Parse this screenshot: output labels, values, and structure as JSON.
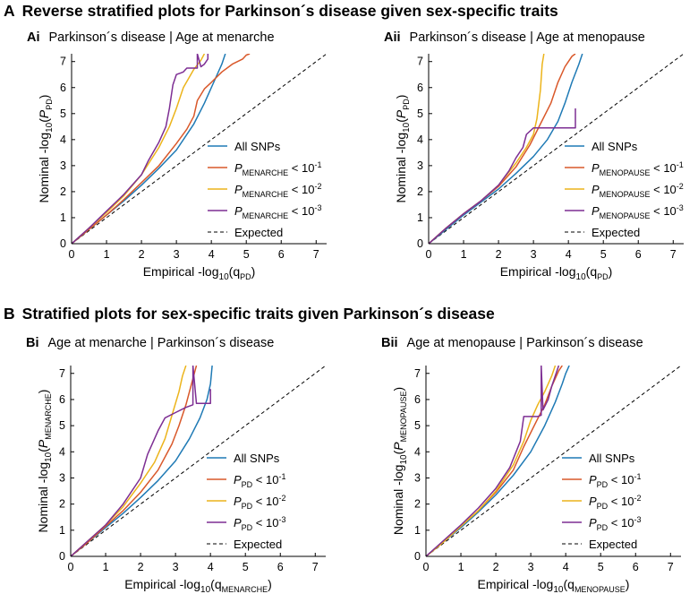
{
  "sections": [
    {
      "letter": "A",
      "title": "Reverse stratified plots for Parkinson´s disease given sex-specific traits"
    },
    {
      "letter": "B",
      "title": "Stratified plots for sex-specific traits given Parkinson´s disease"
    }
  ],
  "legend_expected": "Expected",
  "colors": {
    "all_snps": "#1f7ab5",
    "p1": "#d9582a",
    "p2": "#ecb41b",
    "p3": "#7d2e93",
    "expected": "#000000",
    "axis": "#000000"
  },
  "chart_data": [
    {
      "type": "line",
      "id": "Ai",
      "panel_label": "Ai",
      "title": "Parkinson´s disease | Age at menarche",
      "xlabel": "Empirical -log10(qPD)",
      "ylabel": "Nominal -log10(PPD)",
      "xlabel_parts": {
        "prefix": "Empirical -log",
        "base": "10",
        "paren_open": "(",
        "var": "q",
        "sub": "PD",
        "paren_close": ")"
      },
      "ylabel_parts": {
        "prefix": "Nominal -log",
        "base": "10",
        "paren_open": "(",
        "var": "P",
        "sub": "PD",
        "paren_close": ")"
      },
      "xlim": [
        0,
        7.3
      ],
      "ylim": [
        0,
        7.3
      ],
      "xticks": [
        "0",
        "1",
        "2",
        "3",
        "4",
        "5",
        "6",
        "7"
      ],
      "yticks": [
        "0",
        "1",
        "2",
        "3",
        "4",
        "5",
        "6",
        "7"
      ],
      "legend": [
        {
          "var": "",
          "sub": "",
          "text": "All SNPs",
          "sup": ""
        },
        {
          "var": "P",
          "sub": "MENARCHE",
          "text": " < 10",
          "sup": "-1"
        },
        {
          "var": "P",
          "sub": "MENARCHE",
          "text": " < 10",
          "sup": "-2"
        },
        {
          "var": "P",
          "sub": "MENARCHE",
          "text": " < 10",
          "sup": "-3"
        }
      ],
      "series": [
        {
          "name": "All SNPs",
          "color": "#1f7ab5",
          "x": [
            0,
            0.5,
            1,
            1.5,
            2,
            2.5,
            3,
            3.5,
            3.8,
            4.1,
            4.3,
            4.4
          ],
          "y": [
            0,
            0.55,
            1.1,
            1.65,
            2.25,
            2.9,
            3.6,
            4.6,
            5.4,
            6.3,
            6.9,
            7.3
          ]
        },
        {
          "name": "P_MENARCHE < 10^-1",
          "color": "#d9582a",
          "x": [
            0,
            0.5,
            1,
            1.5,
            2,
            2.5,
            3,
            3.3,
            3.5,
            3.6,
            3.8,
            4.0,
            4.3,
            4.6,
            4.9,
            5.0,
            5.1
          ],
          "y": [
            0,
            0.55,
            1.1,
            1.7,
            2.35,
            3.0,
            3.85,
            4.4,
            4.9,
            5.5,
            5.95,
            6.2,
            6.6,
            6.9,
            7.1,
            7.25,
            7.3
          ]
        },
        {
          "name": "P_MENARCHE < 10^-2",
          "color": "#ecb41b",
          "x": [
            0,
            0.5,
            1,
            1.5,
            2,
            2.5,
            2.8,
            3.0,
            3.2,
            3.5,
            3.7,
            3.8
          ],
          "y": [
            0,
            0.6,
            1.2,
            1.85,
            2.65,
            3.7,
            4.5,
            5.2,
            6.0,
            6.7,
            7.05,
            7.3
          ]
        },
        {
          "name": "P_MENARCHE < 10^-3",
          "color": "#7d2e93",
          "x": [
            0,
            0.5,
            1,
            1.5,
            2,
            2.2,
            2.5,
            2.7,
            2.8,
            2.9,
            3.0,
            3.1,
            3.2,
            3.3,
            3.4,
            3.5,
            3.6,
            3.6,
            3.7,
            3.8,
            3.9,
            3.9
          ],
          "y": [
            0,
            0.6,
            1.25,
            1.9,
            2.65,
            3.2,
            3.9,
            4.5,
            5.2,
            6.1,
            6.5,
            6.55,
            6.6,
            6.75,
            6.75,
            6.75,
            6.75,
            7.3,
            6.8,
            6.9,
            7.1,
            7.3
          ]
        }
      ]
    },
    {
      "type": "line",
      "id": "Aii",
      "panel_label": "Aii",
      "title": "Parkinson´s disease | Age at menopause",
      "xlabel": "Empirical -log10(qPD)",
      "ylabel": "Nominal -log10(PPD)",
      "xlabel_parts": {
        "prefix": "Empirical -log",
        "base": "10",
        "paren_open": "(",
        "var": "q",
        "sub": "PD",
        "paren_close": ")"
      },
      "ylabel_parts": {
        "prefix": "Nominal -log",
        "base": "10",
        "paren_open": "(",
        "var": "P",
        "sub": "PD",
        "paren_close": ")"
      },
      "xlim": [
        0,
        7.3
      ],
      "ylim": [
        0,
        7.3
      ],
      "xticks": [
        "0",
        "1",
        "2",
        "3",
        "4",
        "5",
        "6",
        "7"
      ],
      "yticks": [
        "0",
        "1",
        "2",
        "3",
        "4",
        "5",
        "6",
        "7"
      ],
      "legend": [
        {
          "var": "",
          "sub": "",
          "text": "All SNPs",
          "sup": ""
        },
        {
          "var": "P",
          "sub": "MENOPAUSE",
          "text": " < 10",
          "sup": "-1"
        },
        {
          "var": "P",
          "sub": "MENOPAUSE",
          "text": " < 10",
          "sup": "-2"
        },
        {
          "var": "P",
          "sub": "MENOPAUSE",
          "text": " < 10",
          "sup": "-3"
        }
      ],
      "series": [
        {
          "name": "All SNPs",
          "color": "#1f7ab5",
          "x": [
            0,
            0.5,
            1,
            1.5,
            2,
            2.5,
            3,
            3.4,
            3.7,
            3.9,
            4.1,
            4.3,
            4.4
          ],
          "y": [
            0,
            0.55,
            1.1,
            1.6,
            2.1,
            2.7,
            3.35,
            4.0,
            4.7,
            5.4,
            6.2,
            6.9,
            7.3
          ]
        },
        {
          "name": "P_MENOPAUSE < 10^-1",
          "color": "#d9582a",
          "x": [
            0,
            0.5,
            1,
            1.5,
            2,
            2.5,
            2.9,
            3.2,
            3.5,
            3.7,
            3.9,
            4.1,
            4.2
          ],
          "y": [
            0,
            0.6,
            1.15,
            1.65,
            2.2,
            2.95,
            3.8,
            4.6,
            5.4,
            6.2,
            6.8,
            7.2,
            7.3
          ]
        },
        {
          "name": "P_MENOPAUSE < 10^-2",
          "color": "#ecb41b",
          "x": [
            0,
            0.5,
            1,
            1.5,
            2,
            2.5,
            2.8,
            3.0,
            3.1,
            3.2,
            3.25,
            3.3
          ],
          "y": [
            0,
            0.6,
            1.15,
            1.65,
            2.25,
            3.1,
            3.7,
            4.2,
            4.8,
            5.9,
            6.9,
            7.3
          ]
        },
        {
          "name": "P_MENOPAUSE < 10^-3",
          "color": "#7d2e93",
          "x": [
            0,
            0.5,
            1,
            1.5,
            2,
            2.3,
            2.5,
            2.7,
            2.8,
            3.0,
            3.5,
            4.0,
            4.2,
            4.2
          ],
          "y": [
            0,
            0.6,
            1.15,
            1.65,
            2.25,
            2.8,
            3.3,
            3.7,
            4.2,
            4.45,
            4.45,
            4.45,
            4.45,
            5.2
          ]
        }
      ]
    },
    {
      "type": "line",
      "id": "Bi",
      "panel_label": "Bi",
      "title": "Age at menarche | Parkinson´s disease",
      "xlabel": "Empirical -log10(qMENARCHE)",
      "ylabel": "Nominal -log10(PMENARCHE)",
      "xlabel_parts": {
        "prefix": "Empirical -log",
        "base": "10",
        "paren_open": "(",
        "var": "q",
        "sub": "MENARCHE",
        "paren_close": ")"
      },
      "ylabel_parts": {
        "prefix": "Nominal -log",
        "base": "10",
        "paren_open": "(",
        "var": "P",
        "sub": "MENARCHE",
        "paren_close": ")"
      },
      "xlim": [
        0,
        7.3
      ],
      "ylim": [
        0,
        7.3
      ],
      "xticks": [
        "0",
        "1",
        "2",
        "3",
        "4",
        "5",
        "6",
        "7"
      ],
      "yticks": [
        "0",
        "1",
        "2",
        "3",
        "4",
        "5",
        "6",
        "7"
      ],
      "legend": [
        {
          "var": "",
          "sub": "",
          "text": "All SNPs",
          "sup": ""
        },
        {
          "var": "P",
          "sub": "PD",
          "text": " < 10",
          "sup": "-1"
        },
        {
          "var": "P",
          "sub": "PD",
          "text": " < 10",
          "sup": "-2"
        },
        {
          "var": "P",
          "sub": "PD",
          "text": " < 10",
          "sup": "-3"
        }
      ],
      "series": [
        {
          "name": "All SNPs",
          "color": "#1f7ab5",
          "x": [
            0,
            0.5,
            1,
            1.5,
            2,
            2.5,
            3,
            3.4,
            3.7,
            3.9,
            4.0,
            4.05
          ],
          "y": [
            0,
            0.55,
            1.1,
            1.65,
            2.25,
            2.9,
            3.65,
            4.5,
            5.3,
            6.0,
            6.6,
            7.3
          ]
        },
        {
          "name": "P_PD < 10^-1",
          "color": "#d9582a",
          "x": [
            0,
            0.5,
            1,
            1.5,
            2,
            2.5,
            2.9,
            3.1,
            3.3,
            3.5,
            3.6
          ],
          "y": [
            0,
            0.55,
            1.15,
            1.75,
            2.45,
            3.3,
            4.3,
            5.0,
            5.8,
            6.8,
            7.3
          ]
        },
        {
          "name": "P_PD < 10^-2",
          "color": "#ecb41b",
          "x": [
            0,
            0.5,
            1,
            1.5,
            2,
            2.4,
            2.7,
            2.9,
            3.1,
            3.2,
            3.3
          ],
          "y": [
            0,
            0.6,
            1.2,
            1.9,
            2.8,
            3.6,
            4.5,
            5.4,
            6.3,
            6.9,
            7.3
          ]
        },
        {
          "name": "P_PD < 10^-3",
          "color": "#7d2e93",
          "x": [
            0,
            0.5,
            1,
            1.5,
            2,
            2.2,
            2.5,
            2.7,
            3.0,
            3.3,
            3.5,
            3.5,
            3.6,
            4.0,
            4.0
          ],
          "y": [
            0,
            0.6,
            1.2,
            2.0,
            3.0,
            3.9,
            4.8,
            5.3,
            5.5,
            5.7,
            5.8,
            7.3,
            5.85,
            5.85,
            6.4
          ]
        }
      ]
    },
    {
      "type": "line",
      "id": "Bii",
      "panel_label": "Bii",
      "title": "Age at menopause | Parkinson´s disease",
      "xlabel": "Empirical -log10(qMENOPAUSE)",
      "ylabel": "Nominal -log10(PMENOPAUSE)",
      "xlabel_parts": {
        "prefix": "Empirical -log",
        "base": "10",
        "paren_open": "(",
        "var": "q",
        "sub": "MENOPAUSE",
        "paren_close": ")"
      },
      "ylabel_parts": {
        "prefix": "Nominal -log",
        "base": "10",
        "paren_open": "(",
        "var": "P",
        "sub": "MENOPAUSE",
        "paren_close": ")"
      },
      "xlim": [
        0,
        7.3
      ],
      "ylim": [
        0,
        7.3
      ],
      "xticks": [
        "0",
        "1",
        "2",
        "3",
        "4",
        "5",
        "6",
        "7"
      ],
      "yticks": [
        "0",
        "1",
        "2",
        "3",
        "4",
        "5",
        "6",
        "7"
      ],
      "legend": [
        {
          "var": "",
          "sub": "",
          "text": "All SNPs",
          "sup": ""
        },
        {
          "var": "P",
          "sub": "PD",
          "text": " < 10",
          "sup": "-1"
        },
        {
          "var": "P",
          "sub": "PD",
          "text": " < 10",
          "sup": "-2"
        },
        {
          "var": "P",
          "sub": "PD",
          "text": " < 10",
          "sup": "-3"
        }
      ],
      "series": [
        {
          "name": "All SNPs",
          "color": "#1f7ab5",
          "x": [
            0,
            0.5,
            1,
            1.5,
            2,
            2.5,
            3,
            3.4,
            3.7,
            3.9,
            4.0,
            4.1
          ],
          "y": [
            0,
            0.55,
            1.1,
            1.7,
            2.35,
            3.1,
            4.0,
            5.0,
            5.9,
            6.6,
            7.0,
            7.3
          ]
        },
        {
          "name": "P_PD < 10^-1",
          "color": "#d9582a",
          "x": [
            0,
            0.5,
            1,
            1.5,
            2,
            2.5,
            2.8,
            3.1,
            3.4,
            3.6,
            3.8,
            3.9
          ],
          "y": [
            0,
            0.55,
            1.15,
            1.75,
            2.45,
            3.3,
            4.2,
            5.0,
            5.8,
            6.5,
            7.1,
            7.3
          ]
        },
        {
          "name": "P_PD < 10^-2",
          "color": "#ecb41b",
          "x": [
            0,
            0.5,
            1,
            1.5,
            2,
            2.5,
            2.8,
            3.0,
            3.2,
            3.4,
            3.6,
            3.7
          ],
          "y": [
            0,
            0.55,
            1.15,
            1.75,
            2.5,
            3.5,
            4.4,
            5.2,
            5.8,
            6.3,
            6.9,
            7.3
          ]
        },
        {
          "name": "P_PD < 10^-3",
          "color": "#7d2e93",
          "x": [
            0,
            0.5,
            1,
            1.5,
            2,
            2.4,
            2.7,
            2.8,
            3.0,
            3.2,
            3.3,
            3.3,
            3.35,
            3.5,
            3.6,
            3.8
          ],
          "y": [
            0,
            0.6,
            1.2,
            1.85,
            2.6,
            3.4,
            4.4,
            5.35,
            5.35,
            5.35,
            5.4,
            7.3,
            5.6,
            6.0,
            6.5,
            7.3
          ]
        }
      ]
    }
  ]
}
